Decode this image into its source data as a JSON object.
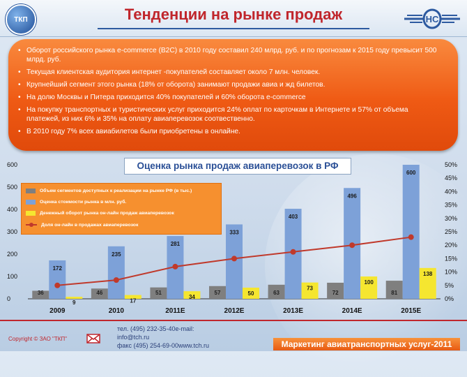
{
  "header": {
    "title": "Тенденции на рынке продаж",
    "logo_left_text": "ТКП"
  },
  "bullets": [
    "Оборот российского рынка e-commerce (B2C) в 2010 году составил 240 млрд. руб. и по прогнозам к 2015 году превысит 500 млрд. руб.",
    "Текущая клиентская аудитория интернет -покупателей составляет около 7 млн. человек.",
    "Крупнейший сегмент этого рынка (18% от оборота) занимают продажи авиа и жд билетов.",
    "На долю Москвы и Питера приходится 40% покупателей и 60% оборота e-commerce",
    "На покупку транспортных и туристических услуг приходится 24% оплат по карточкам в Интернете и 57% от объема платежей, из них 6% и 35% на оплату авиаперевозок соотвественно.",
    "В 2010 году 7% всех авиабилетов были приобретены в онлайне."
  ],
  "chart_data": {
    "type": "bar",
    "title": "Оценка рынка продаж авиаперевозок в РФ",
    "categories": [
      "2009",
      "2010",
      "2011E",
      "2012E",
      "2013E",
      "2014E",
      "2015E"
    ],
    "series": [
      {
        "name": "Объем сегментов доступных к реализации на рынке РФ (в тыс.)",
        "type": "bar",
        "color": "#7f7f7f",
        "axis": "left",
        "values": [
          36,
          46,
          51,
          57,
          63,
          72,
          81
        ]
      },
      {
        "name": "Оценка стоимости рынка в млн. руб.",
        "type": "bar",
        "color": "#7da1d8",
        "axis": "left",
        "values": [
          172,
          235,
          281,
          333,
          403,
          496,
          600
        ]
      },
      {
        "name": "Денежный оборот рынка он-лайн продаж авиаперевозок",
        "type": "bar",
        "color": "#f5e630",
        "axis": "left",
        "values": [
          9,
          17,
          34,
          50,
          73,
          100,
          138
        ]
      },
      {
        "name": "Доля он-лайн в продажах авиаперевозок",
        "type": "line",
        "color": "#c0392b",
        "axis": "right",
        "values": [
          5,
          7,
          12,
          15,
          17.5,
          20,
          23
        ]
      }
    ],
    "y_left": {
      "min": 0,
      "max": 600,
      "ticks": [
        "0",
        "100",
        "200",
        "300",
        "400",
        "500",
        "600"
      ]
    },
    "y_right": {
      "min": 0,
      "max": 50,
      "ticks": [
        "0%",
        "5%",
        "10%",
        "15%",
        "20%",
        "25%",
        "30%",
        "35%",
        "40%",
        "45%",
        "50%"
      ]
    },
    "grid": false,
    "legend_position": "top-left"
  },
  "footer": {
    "copyright": "Copyright © ЗАО \"ТКП\"",
    "contacts": [
      "тел.  (495) 232-35-40e-mail:",
      "info@tch.ru",
      "факс (495) 254-69-00www.tch.ru"
    ],
    "brand": "Маркетинг авиатранспортных услуг-2011"
  },
  "icons": [
    "logo-icon",
    "mail-icon",
    "rzd-logo-icon"
  ]
}
